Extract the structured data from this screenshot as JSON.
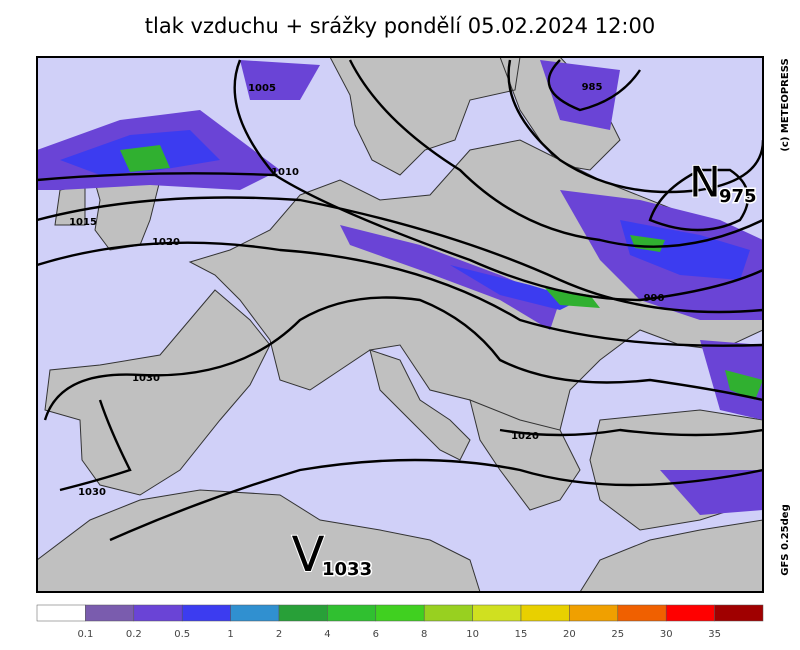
{
  "header": {
    "title": "tlak vzduchu + srážky pondělí 05.02.2024 12:00"
  },
  "map": {
    "isobar_labels": [
      1005,
      1010,
      1015,
      1020,
      985,
      990,
      1030,
      1030,
      1020
    ],
    "pressure_centers": [
      {
        "letter": "N",
        "value": 975
      },
      {
        "letter": "V",
        "value": 1033
      }
    ],
    "credits": [
      "(c) METEOPRESS",
      "GFS 0.25deg"
    ]
  },
  "legend": {
    "colors": [
      "#ffffff",
      "#7a5cae",
      "#6a44d6",
      "#3c3cf0",
      "#3090d0",
      "#28a038",
      "#30c030",
      "#40d020",
      "#98d020",
      "#d0e020",
      "#e8d000",
      "#f0a000",
      "#f06000",
      "#ff0000",
      "#a00000"
    ],
    "ticks": [
      0.1,
      0.2,
      0.5,
      1,
      2,
      4,
      6,
      8,
      10,
      15,
      20,
      25,
      30,
      35
    ]
  }
}
